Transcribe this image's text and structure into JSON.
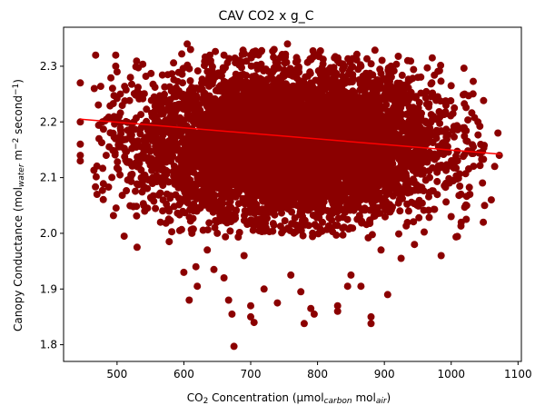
{
  "chart_data": {
    "type": "scatter",
    "title": "CAV CO2 x g_C",
    "xlabel": {
      "parts": [
        {
          "text": "CO",
          "style": "normal"
        },
        {
          "text": "2",
          "style": "sub"
        },
        {
          "text": " Concentration (µmol",
          "style": "normal"
        },
        {
          "text": "carbon",
          "style": "sub-italic"
        },
        {
          "text": " mol",
          "style": "normal"
        },
        {
          "text": "air",
          "style": "sub-italic"
        },
        {
          "text": ")",
          "style": "normal"
        }
      ]
    },
    "ylabel": {
      "parts": [
        {
          "text": "Canopy Conductance (mol",
          "style": "normal"
        },
        {
          "text": "water",
          "style": "sub-italic"
        },
        {
          "text": " m",
          "style": "normal"
        },
        {
          "text": "−2",
          "style": "sup"
        },
        {
          "text": " second",
          "style": "normal"
        },
        {
          "text": "−1",
          "style": "sup"
        },
        {
          "text": ")",
          "style": "normal"
        }
      ]
    },
    "xlim": [
      420,
      1105
    ],
    "ylim": [
      1.77,
      2.37
    ],
    "xticks": [
      "500",
      "600",
      "700",
      "800",
      "900",
      "1000",
      "1100"
    ],
    "yticks": [
      "1.8",
      "1.9",
      "2.0",
      "2.1",
      "2.2",
      "2.3"
    ],
    "grid": false,
    "colors": {
      "points": "#8b0000",
      "fit": "#ff0000"
    },
    "fit_line": {
      "x": [
        445,
        1075
      ],
      "y": [
        2.205,
        2.142
      ]
    },
    "dense_cloud": {
      "center_x": 760,
      "center_y": 2.16,
      "sd_x": 110,
      "sd_y": 0.065,
      "count": 9000
    },
    "points": [
      [
        445,
        2.27
      ],
      [
        445,
        2.2
      ],
      [
        445,
        2.16
      ],
      [
        445,
        2.14
      ],
      [
        445,
        2.13
      ],
      [
        468,
        2.32
      ],
      [
        466,
        2.26
      ],
      [
        470,
        2.07
      ],
      [
        473,
        2.17
      ],
      [
        478,
        2.2
      ],
      [
        498,
        2.32
      ],
      [
        498,
        2.3
      ],
      [
        500,
        2.29
      ],
      [
        505,
        2.25
      ],
      [
        503,
        2.21
      ],
      [
        520,
        2.28
      ],
      [
        525,
        2.2
      ],
      [
        530,
        1.975
      ],
      [
        532,
        2.12
      ],
      [
        540,
        2.05
      ],
      [
        560,
        2.1
      ],
      [
        565,
        2.02
      ],
      [
        578,
        1.985
      ],
      [
        600,
        1.93
      ],
      [
        608,
        1.88
      ],
      [
        612,
        2.0
      ],
      [
        618,
        1.94
      ],
      [
        620,
        1.905
      ],
      [
        635,
        1.97
      ],
      [
        645,
        1.935
      ],
      [
        650,
        2.0
      ],
      [
        660,
        1.92
      ],
      [
        667,
        1.88
      ],
      [
        672,
        1.855
      ],
      [
        675,
        1.797
      ],
      [
        690,
        1.96
      ],
      [
        700,
        1.87
      ],
      [
        700,
        1.85
      ],
      [
        705,
        1.84
      ],
      [
        720,
        1.9
      ],
      [
        740,
        1.875
      ],
      [
        760,
        1.925
      ],
      [
        775,
        1.895
      ],
      [
        780,
        1.838
      ],
      [
        790,
        1.865
      ],
      [
        795,
        1.855
      ],
      [
        830,
        1.87
      ],
      [
        830,
        1.86
      ],
      [
        845,
        1.905
      ],
      [
        850,
        1.925
      ],
      [
        865,
        1.905
      ],
      [
        880,
        1.85
      ],
      [
        880,
        1.838
      ],
      [
        895,
        1.97
      ],
      [
        905,
        1.89
      ],
      [
        925,
        1.955
      ],
      [
        945,
        1.98
      ],
      [
        985,
        1.96
      ],
      [
        1000,
        2.03
      ],
      [
        1015,
        2.02
      ],
      [
        1028,
        2.07
      ],
      [
        1048,
        2.02
      ],
      [
        1050,
        2.05
      ],
      [
        1060,
        2.06
      ],
      [
        1065,
        2.12
      ],
      [
        1070,
        2.18
      ],
      [
        1072,
        2.14
      ],
      [
        1040,
        2.2
      ],
      [
        1020,
        2.25
      ],
      [
        1000,
        2.265
      ],
      [
        605,
        2.34
      ],
      [
        610,
        2.33
      ],
      [
        640,
        2.31
      ],
      [
        660,
        2.32
      ],
      [
        700,
        2.32
      ],
      [
        735,
        2.33
      ],
      [
        755,
        2.34
      ],
      [
        770,
        2.31
      ],
      [
        830,
        2.31
      ],
      [
        865,
        2.3
      ],
      [
        910,
        2.3
      ],
      [
        935,
        2.31
      ],
      [
        950,
        2.28
      ]
    ]
  }
}
